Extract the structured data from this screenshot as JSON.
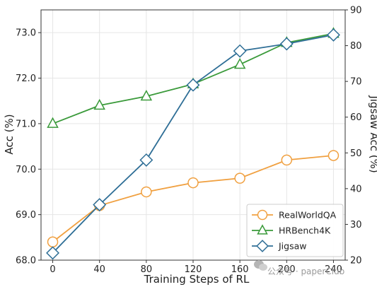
{
  "chart_data": {
    "type": "line",
    "xlabel": "Training Steps of RL",
    "ylabel_left": "Acc (%)",
    "ylabel_right": "Jigsaw Acc (%)",
    "x": [
      0,
      40,
      80,
      120,
      160,
      200,
      240
    ],
    "x_ticks": [
      "0",
      "40",
      "80",
      "120",
      "160",
      "200",
      "240"
    ],
    "xlim": [
      -10,
      250
    ],
    "ylim_left": [
      68.0,
      73.5
    ],
    "ylim_right": [
      20,
      90
    ],
    "y_ticks_left": [
      "68.0",
      "69.0",
      "70.0",
      "71.0",
      "72.0",
      "73.0"
    ],
    "y_ticks_right": [
      "20",
      "30",
      "40",
      "50",
      "60",
      "70",
      "80",
      "90"
    ],
    "grid": true,
    "legend_position": "lower-right",
    "series": [
      {
        "name": "RealWorldQA",
        "axis": "left",
        "marker": "circle",
        "color": "#f0a040",
        "values": [
          68.4,
          69.2,
          69.5,
          69.7,
          69.8,
          70.2,
          70.3
        ]
      },
      {
        "name": "HRBench4K",
        "axis": "left",
        "marker": "triangle",
        "color": "#3a9a3a",
        "values": [
          71.0,
          71.4,
          71.6,
          71.87,
          72.3,
          72.78,
          72.98
        ]
      },
      {
        "name": "Jigsaw",
        "axis": "right",
        "marker": "diamond",
        "color": "#2e6e96",
        "values": [
          22.0,
          35.5,
          48.0,
          69.0,
          78.5,
          80.5,
          83.0
        ]
      }
    ]
  },
  "watermark": {
    "text": "公众号 · paperClub",
    "icon": "wechat-icon"
  }
}
